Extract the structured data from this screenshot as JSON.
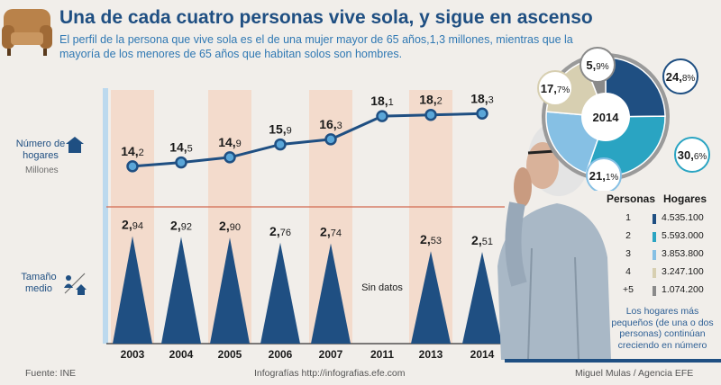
{
  "header": {
    "title": "Una de cada cuatro personas vive sola, y sigue en ascenso",
    "subtitle": "El perfil de la persona que vive sola es el de una mujer mayor de 65 años,1,3 millones, mientras que la mayoría de los menores de 65 años que habitan solos son hombres."
  },
  "labels": {
    "hogares": "Número de hogares",
    "millones": "Millones",
    "tamano": "Tamaño medio",
    "sin_datos": "Sin datos"
  },
  "chart_data": [
    {
      "type": "line",
      "name": "Número de hogares",
      "x": [
        "2003",
        "2004",
        "2005",
        "2006",
        "2007",
        "2011",
        "2013",
        "2014"
      ],
      "values": [
        14.2,
        14.5,
        14.9,
        15.9,
        16.3,
        18.1,
        18.2,
        18.3
      ],
      "value_labels": [
        [
          "14,",
          "2"
        ],
        [
          "14,",
          "5"
        ],
        [
          "14,",
          "9"
        ],
        [
          "15,",
          "9"
        ],
        [
          "16,",
          "3"
        ],
        [
          "18,",
          "1"
        ],
        [
          "18,",
          "2"
        ],
        [
          "18,",
          "3"
        ]
      ],
      "ylabel": "Millones",
      "ylim": [
        13,
        19.3
      ],
      "colors": {
        "line": "#1f4f82",
        "point_fill": "#5aa6d8"
      }
    },
    {
      "type": "bar",
      "name": "Tamaño medio",
      "categories": [
        "2003",
        "2004",
        "2005",
        "2006",
        "2007",
        "2011",
        "2013",
        "2014"
      ],
      "values": [
        2.94,
        2.92,
        2.9,
        2.76,
        2.74,
        null,
        2.53,
        2.51
      ],
      "value_labels": [
        [
          "2,",
          "94"
        ],
        [
          "2,",
          "92"
        ],
        [
          "2,",
          "90"
        ],
        [
          "2,",
          "76"
        ],
        [
          "2,",
          "74"
        ],
        null,
        [
          "2,",
          "53"
        ],
        [
          "2,",
          "51"
        ]
      ],
      "ylim": [
        0,
        3.1
      ],
      "missing_label": "Sin datos",
      "colors": {
        "bar": "#1f4f82"
      }
    },
    {
      "type": "pie",
      "center_label": "2014",
      "labels": [
        "1",
        "2",
        "3",
        "4",
        "+5"
      ],
      "values": [
        24.8,
        30.6,
        21.1,
        17.7,
        5.9
      ],
      "value_labels": [
        [
          "24,",
          "8%"
        ],
        [
          "30,",
          "6%"
        ],
        [
          "21,",
          "1%"
        ],
        [
          "17,",
          "7%"
        ],
        [
          "5,",
          "9%"
        ]
      ],
      "colors": [
        "#1f4f82",
        "#2aa4c2",
        "#86c0e4",
        "#d7cfb1",
        "#8a8a8a"
      ]
    },
    {
      "type": "table",
      "columns": [
        "Personas",
        "Hogares"
      ],
      "rows": [
        {
          "personas": "1",
          "hogares": "4.535.100",
          "color": "#1f4f82"
        },
        {
          "personas": "2",
          "hogares": "5.593.000",
          "color": "#2aa4c2"
        },
        {
          "personas": "3",
          "hogares": "3.853.800",
          "color": "#86c0e4"
        },
        {
          "personas": "4",
          "hogares": "3.247.100",
          "color": "#d7cfb1"
        },
        {
          "personas": "+5",
          "hogares": "1.074.200",
          "color": "#8a8a8a"
        }
      ]
    }
  ],
  "note": "Los hogares más pequeños (de una o dos personas) continúan creciendo en número",
  "footer": {
    "fuente": "Fuente: INE",
    "infografias": "Infografías http://infografias.efe.com",
    "autor": "Miguel Mulas / Agencia EFE"
  },
  "icons": [
    "sofa-icon",
    "house-icon",
    "people-house-icon",
    "elderly-woman-photo"
  ]
}
